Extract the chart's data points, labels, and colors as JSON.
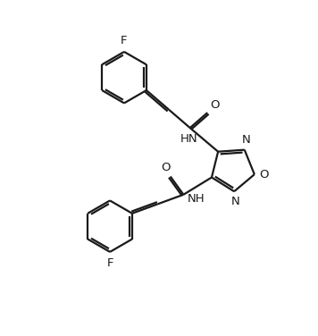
{
  "background": "#ffffff",
  "line_color": "#1a1a1a",
  "line_width": 1.6,
  "font_size": 9.5,
  "figsize": [
    3.56,
    3.76
  ],
  "dpi": 100,
  "xlim": [
    0,
    10
  ],
  "ylim": [
    0,
    10.56
  ]
}
